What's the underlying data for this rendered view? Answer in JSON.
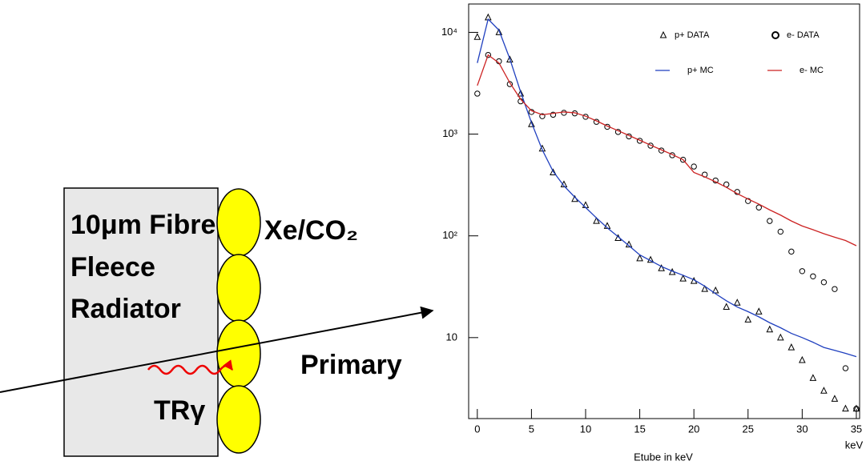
{
  "diagram": {
    "radiator_label": [
      "10μm Fibre",
      "Fleece",
      "Radiator"
    ],
    "gas_label": "Xe/CO₂",
    "primary_label": "Primary",
    "photon_label": "TRγ"
  },
  "chart_data": {
    "type": "line",
    "x_label": "Etube in keV",
    "x_unit": "keV",
    "log_y": true,
    "x": [
      0,
      1,
      2,
      3,
      4,
      5,
      6,
      7,
      8,
      9,
      10,
      11,
      12,
      13,
      14,
      15,
      16,
      17,
      18,
      19,
      20,
      21,
      22,
      23,
      24,
      25,
      26,
      27,
      28,
      29,
      30,
      31,
      32,
      33,
      34,
      35
    ],
    "series": [
      {
        "name": "p+ DATA",
        "color": "#000000",
        "marker": "triangle",
        "values": [
          9000,
          14000,
          10000,
          5400,
          2500,
          1250,
          720,
          420,
          320,
          230,
          200,
          140,
          125,
          95,
          82,
          60,
          58,
          48,
          44,
          38,
          36,
          30,
          29,
          20,
          22,
          15,
          18,
          12,
          10,
          8,
          6,
          4,
          3,
          2.5,
          2,
          2
        ]
      },
      {
        "name": "e- DATA",
        "color": "#000000",
        "marker": "circle",
        "values": [
          2500,
          6000,
          5200,
          3100,
          2100,
          1650,
          1500,
          1550,
          1620,
          1600,
          1480,
          1320,
          1180,
          1050,
          950,
          860,
          770,
          690,
          620,
          560,
          480,
          400,
          350,
          320,
          270,
          220,
          190,
          140,
          110,
          70,
          45,
          40,
          35,
          30,
          5,
          2
        ]
      },
      {
        "name": "p+ MC",
        "color": "#1f3fbf",
        "values": [
          5000,
          13500,
          10500,
          5500,
          2600,
          1300,
          700,
          430,
          310,
          240,
          190,
          150,
          120,
          98,
          80,
          65,
          57,
          50,
          45,
          41,
          37,
          32,
          27,
          23,
          20,
          18,
          16,
          14,
          12.5,
          11,
          10,
          9,
          8,
          7.5,
          7,
          6.5
        ]
      },
      {
        "name": "e- MC",
        "color": "#cc2222",
        "values": [
          3000,
          6000,
          5000,
          3200,
          2200,
          1700,
          1550,
          1600,
          1650,
          1620,
          1500,
          1350,
          1200,
          1080,
          970,
          870,
          780,
          700,
          630,
          560,
          420,
          380,
          340,
          300,
          260,
          230,
          205,
          180,
          160,
          140,
          125,
          115,
          105,
          97,
          90,
          80
        ]
      }
    ],
    "xlim": [
      -0.8,
      35.3
    ],
    "ylim": [
      1.6,
      19000
    ],
    "xticks": [
      0,
      5,
      10,
      15,
      20,
      25,
      30,
      35
    ],
    "yticks": [
      10,
      {
        "value": 100,
        "label": "10²"
      },
      {
        "value": 1000,
        "label": "10³"
      },
      {
        "value": 10000,
        "label": "10⁴"
      }
    ]
  }
}
